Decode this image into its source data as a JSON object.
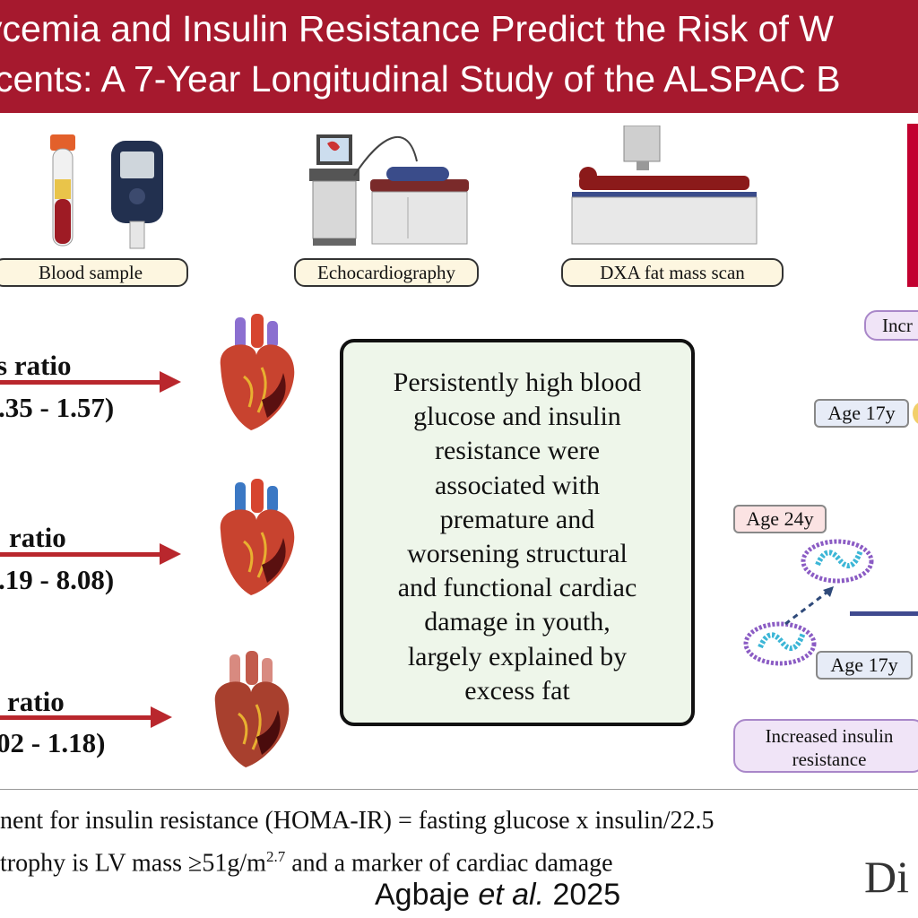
{
  "header": {
    "title_line1": "ycemia and Insulin Resistance Predict the Risk of W",
    "title_line2": "cents: A 7-Year Longitudinal Study of the ALSPAC B"
  },
  "methods": {
    "blood": "Blood sample",
    "echo": "Echocardiography",
    "dxa": "DXA fat mass scan"
  },
  "results": [
    {
      "ratio": "s ratio",
      "ci": ".35 - 1.57)"
    },
    {
      "ratio": "ratio",
      "ci": ".19 - 8.08)"
    },
    {
      "ratio": "ratio",
      "ci": "02 - 1.18)"
    }
  ],
  "conclusion": {
    "lines": [
      "Persistently high blood",
      "glucose and insulin",
      "resistance were",
      "associated with",
      "premature and",
      "worsening structural",
      "and functional cardiac",
      "damage in youth,",
      "largely explained by",
      "excess fat"
    ]
  },
  "right_panel": {
    "top_pill": "Incr",
    "age_top": "Age 17y",
    "age_24": "Age 24y",
    "age_bottom": "Age 17y",
    "bottom_pill_line1": "Increased insulin",
    "bottom_pill_line2": "resistance"
  },
  "footer": {
    "line1": "nent for insulin resistance (HOMA-IR) = fasting glucose x insulin/22.5",
    "line2_a": "trophy is LV mass ≥51g/m",
    "line2_sup": "2.7",
    "line2_b": " and a marker of cardiac damage",
    "author_a": "Agbaje ",
    "author_etal": "et al.",
    "author_b": " 2025",
    "journal": "Di"
  },
  "colors": {
    "banner": "#a6192e",
    "arrow": "#b9272d",
    "conclusion_bg": "#eef6ea",
    "label_bg": "#fdf6e0",
    "pill_bg": "#f0e4f7"
  }
}
